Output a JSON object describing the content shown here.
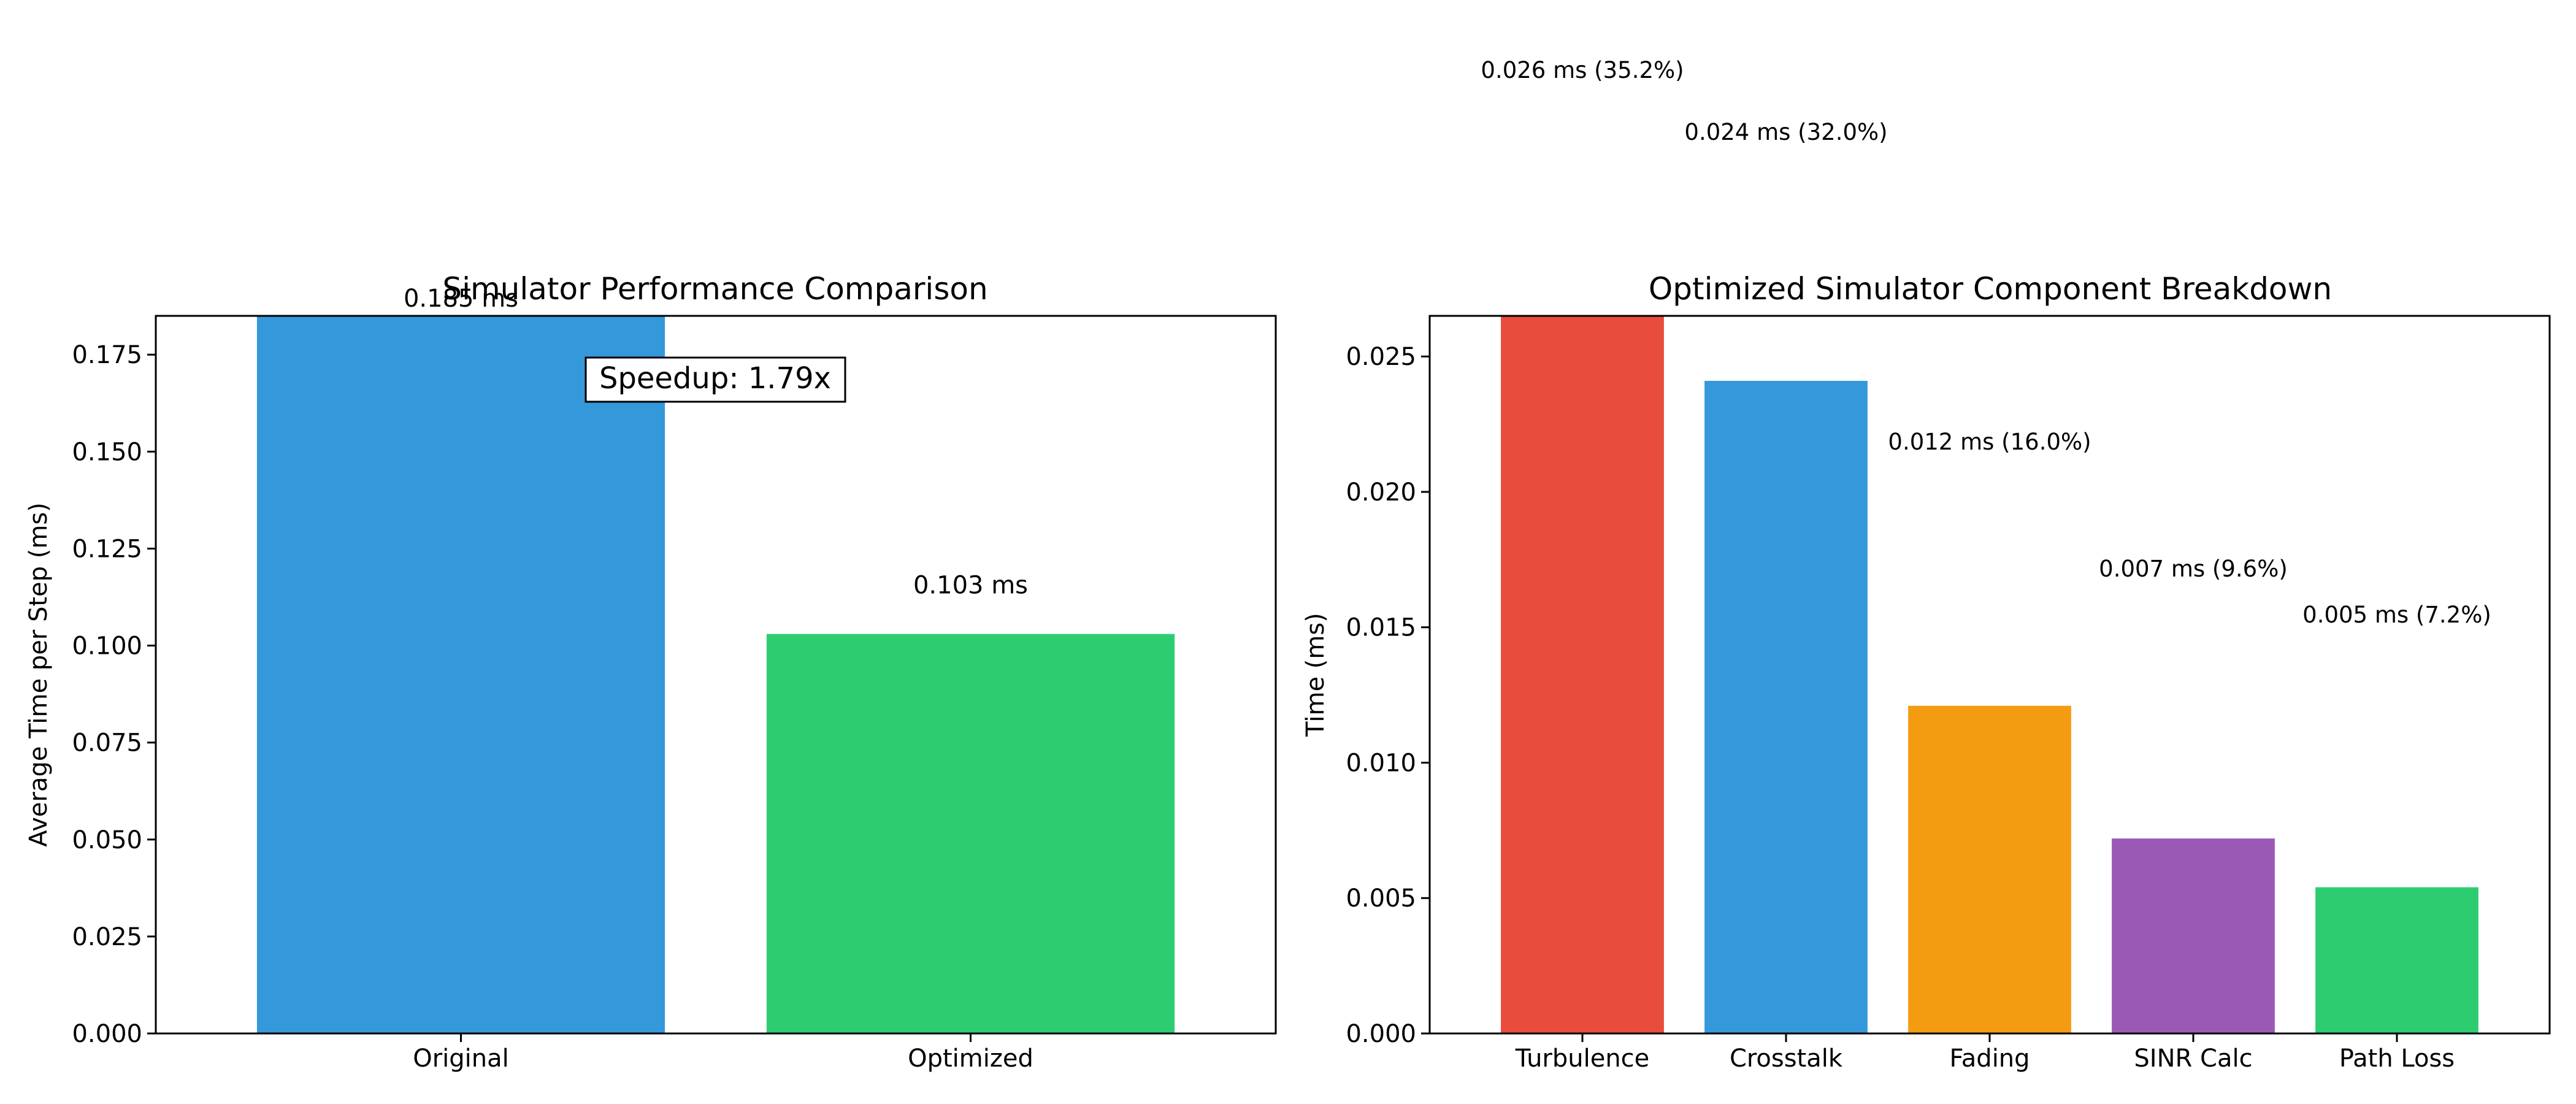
{
  "chart_data": [
    {
      "type": "bar",
      "title": "Simulator Performance Comparison",
      "xlabel": "",
      "ylabel": "Average Time per Step (ms)",
      "categories": [
        "Original",
        "Optimized"
      ],
      "values": [
        0.185,
        0.103
      ],
      "colors": [
        "#3498db",
        "#2ecc71"
      ],
      "data_labels": [
        "0.185 ms",
        "0.103 ms"
      ],
      "annotation": "Speedup: 1.79x",
      "ylim": [
        0,
        0.185
      ],
      "yticks": [
        0.0,
        0.025,
        0.05,
        0.075,
        0.1,
        0.125,
        0.15,
        0.175
      ],
      "ytick_labels": [
        "0.000",
        "0.025",
        "0.050",
        "0.075",
        "0.100",
        "0.125",
        "0.150",
        "0.175"
      ],
      "grid": false
    },
    {
      "type": "bar",
      "title": "Optimized Simulator Component Breakdown",
      "xlabel": "",
      "ylabel": "Time (ms)",
      "categories": [
        "Turbulence",
        "Crosstalk",
        "Fading",
        "SINR Calc",
        "Path Loss"
      ],
      "values": [
        0.0265,
        0.0241,
        0.0121,
        0.0072,
        0.0054
      ],
      "colors": [
        "#e74c3c",
        "#3498db",
        "#f39c12",
        "#9b59b6",
        "#2ecc71"
      ],
      "data_labels": [
        "0.026 ms (35.2%)",
        "0.024 ms (32.0%)",
        "0.012 ms (16.0%)",
        "0.007 ms (9.6%)",
        "0.005 ms (7.2%)"
      ],
      "ylim": [
        0,
        0.0265
      ],
      "yticks": [
        0.0,
        0.005,
        0.01,
        0.015,
        0.02,
        0.025
      ],
      "ytick_labels": [
        "0.000",
        "0.005",
        "0.010",
        "0.015",
        "0.020",
        "0.025"
      ],
      "grid": false
    }
  ]
}
